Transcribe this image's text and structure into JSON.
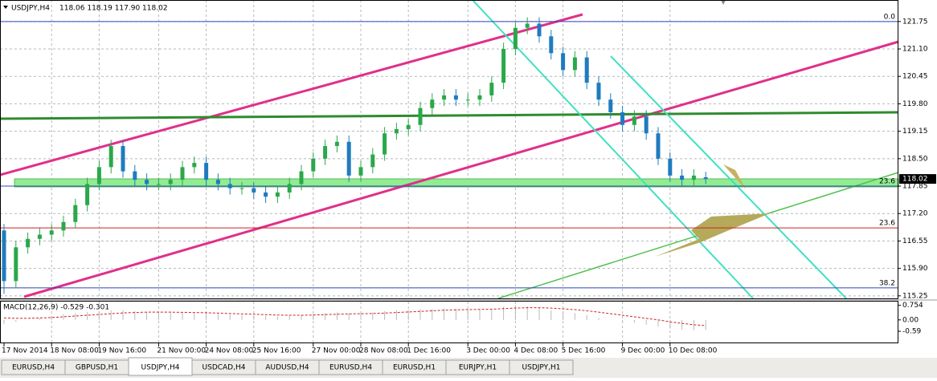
{
  "chart_data": {
    "type": "candlestick",
    "symbol": "USDJPY,H4",
    "ohlc_text": "118.06 118.19 117.90 118.02",
    "categories": [
      "17 Nov 2014",
      null,
      null,
      null,
      "18 Nov 08:00",
      null,
      null,
      null,
      "19 Nov 16:00",
      null,
      null,
      null,
      null,
      "21 Nov 00:00",
      null,
      null,
      null,
      "24 Nov 08:00",
      null,
      null,
      null,
      "25 Nov 16:00",
      null,
      null,
      null,
      null,
      "27 Nov 00:00",
      null,
      null,
      null,
      "28 Nov 08:00",
      null,
      null,
      null,
      "1 Dec 16:00",
      null,
      null,
      null,
      null,
      "3 Dec 00:00",
      null,
      null,
      null,
      "4 Dec 08:00",
      null,
      null,
      null,
      "5 Dec 16:00",
      null,
      null,
      null,
      null,
      "9 Dec 00:00",
      null,
      null,
      null,
      "10 Dec 08:00",
      null,
      null,
      null
    ],
    "open": [
      116.8,
      115.6,
      116.4,
      116.6,
      116.7,
      116.8,
      117.0,
      117.4,
      117.9,
      118.3,
      118.8,
      118.2,
      118.0,
      117.9,
      117.9,
      118.0,
      118.3,
      118.4,
      118.0,
      117.9,
      117.8,
      117.8,
      117.7,
      117.6,
      117.7,
      117.9,
      118.2,
      118.5,
      118.8,
      118.9,
      118.1,
      118.3,
      118.6,
      119.1,
      119.2,
      119.3,
      119.7,
      119.9,
      120.0,
      119.9,
      119.9,
      120.0,
      120.3,
      121.1,
      121.6,
      121.7,
      121.4,
      121.0,
      120.6,
      120.9,
      120.3,
      119.9,
      119.6,
      119.3,
      119.5,
      119.1,
      118.5,
      118.1,
      118.0,
      118.06
    ],
    "high": [
      116.95,
      116.55,
      116.75,
      116.85,
      116.95,
      117.15,
      117.55,
      118.05,
      118.45,
      118.95,
      118.95,
      118.35,
      118.15,
      118.05,
      118.15,
      118.45,
      118.55,
      118.55,
      118.15,
      118.05,
      117.95,
      117.95,
      117.85,
      117.85,
      118.05,
      118.35,
      118.65,
      118.95,
      119.05,
      119.05,
      118.45,
      118.75,
      119.25,
      119.35,
      119.45,
      119.85,
      120.05,
      120.15,
      120.15,
      120.05,
      120.15,
      120.45,
      121.25,
      121.75,
      121.85,
      121.85,
      121.55,
      121.15,
      121.05,
      121.05,
      120.45,
      120.05,
      119.75,
      119.65,
      119.65,
      119.25,
      118.65,
      118.25,
      118.25,
      118.19
    ],
    "low": [
      115.3,
      115.45,
      116.25,
      116.45,
      116.55,
      116.65,
      116.85,
      117.25,
      117.75,
      118.15,
      118.05,
      117.85,
      117.75,
      117.75,
      117.75,
      117.85,
      118.15,
      117.85,
      117.75,
      117.65,
      117.65,
      117.55,
      117.45,
      117.45,
      117.55,
      117.75,
      118.05,
      118.35,
      118.65,
      117.95,
      117.95,
      118.15,
      118.45,
      118.95,
      119.05,
      119.15,
      119.55,
      119.75,
      119.75,
      119.75,
      119.75,
      119.85,
      120.15,
      120.95,
      121.45,
      121.25,
      120.85,
      120.45,
      120.45,
      120.15,
      119.75,
      119.45,
      119.15,
      119.15,
      118.95,
      118.35,
      117.95,
      117.85,
      117.85,
      117.9
    ],
    "close": [
      115.6,
      116.4,
      116.6,
      116.7,
      116.8,
      117.0,
      117.4,
      117.9,
      118.3,
      118.8,
      118.2,
      118.0,
      117.9,
      117.9,
      118.0,
      118.3,
      118.4,
      118.0,
      117.9,
      117.8,
      117.8,
      117.7,
      117.6,
      117.7,
      117.9,
      118.2,
      118.5,
      118.8,
      118.9,
      118.1,
      118.3,
      118.6,
      119.1,
      119.2,
      119.3,
      119.7,
      119.9,
      120.0,
      119.9,
      119.9,
      120.0,
      120.3,
      121.1,
      121.6,
      121.7,
      121.4,
      121.0,
      120.6,
      120.9,
      120.3,
      119.9,
      119.6,
      119.3,
      119.5,
      119.1,
      118.5,
      118.1,
      118.0,
      118.1,
      118.02
    ],
    "bull_color": "#2aa84a",
    "bear_color": "#1f7bbf",
    "ylim": [
      115.19,
      122.26
    ],
    "yticks": [
      {
        "value": 121.75,
        "label": "121.75"
      },
      {
        "value": 121.1,
        "label": "121.10"
      },
      {
        "value": 120.45,
        "label": "120.45"
      },
      {
        "value": 119.8,
        "label": "119.80"
      },
      {
        "value": 119.15,
        "label": "119.15"
      },
      {
        "value": 118.5,
        "label": "118.50"
      },
      {
        "value": 117.85,
        "label": "117.85"
      },
      {
        "value": 117.2,
        "label": "117.20"
      },
      {
        "value": 116.55,
        "label": "116.55"
      },
      {
        "value": 115.9,
        "label": "115.90"
      },
      {
        "value": 115.25,
        "label": "115.25"
      }
    ],
    "current_price": 118.02,
    "grid": true,
    "fib_levels": [
      {
        "price": 121.75,
        "label": "0.0",
        "color": "#3344bb"
      },
      {
        "price": 117.85,
        "label": "23.6",
        "color": "#3344bb"
      },
      {
        "price": 116.86,
        "label": "23.6",
        "color": "#cc2222"
      },
      {
        "price": 115.44,
        "label": "38.2",
        "color": "#3344bb"
      }
    ],
    "macd": {
      "title": "MACD(12,26,9) -0.529 -0.301",
      "histogram": [
        -0.2,
        -0.1,
        0,
        0.1,
        0.2,
        0.3,
        0.35,
        0.4,
        0.45,
        0.5,
        0.5,
        0.45,
        0.4,
        0.4,
        0.38,
        0.38,
        0.36,
        0.33,
        0.3,
        0.28,
        0.25,
        0.22,
        0.2,
        0.18,
        0.2,
        0.25,
        0.3,
        0.35,
        0.38,
        0.35,
        0.35,
        0.38,
        0.45,
        0.5,
        0.52,
        0.55,
        0.58,
        0.6,
        0.58,
        0.56,
        0.55,
        0.58,
        0.68,
        0.75,
        0.7,
        0.62,
        0.5,
        0.4,
        0.35,
        0.25,
        0.1,
        0,
        -0.1,
        -0.15,
        -0.25,
        -0.35,
        -0.45,
        -0.5,
        -0.53,
        -0.53
      ],
      "signal": [
        0.1,
        0.08,
        0.08,
        0.1,
        0.12,
        0.16,
        0.2,
        0.24,
        0.28,
        0.32,
        0.36,
        0.38,
        0.4,
        0.4,
        0.4,
        0.39,
        0.38,
        0.37,
        0.35,
        0.33,
        0.31,
        0.29,
        0.27,
        0.25,
        0.24,
        0.24,
        0.25,
        0.27,
        0.29,
        0.31,
        0.32,
        0.33,
        0.35,
        0.38,
        0.41,
        0.44,
        0.47,
        0.5,
        0.52,
        0.53,
        0.54,
        0.55,
        0.58,
        0.61,
        0.63,
        0.63,
        0.61,
        0.57,
        0.53,
        0.47,
        0.4,
        0.32,
        0.24,
        0.16,
        0.08,
        0,
        -0.1,
        -0.18,
        -0.25,
        -0.3
      ],
      "ylim": [
        -1.21,
        0.945
      ],
      "yticks": [
        0.754,
        {
          "value": 0,
          "label": "0.00"
        },
        -0.59
      ],
      "signal_color": "#cc2222",
      "histogram_color": "#b8b8b8"
    }
  },
  "tabs": [
    "EURUSD,H4",
    "GBPUSD,H1",
    "USDJPY,H4",
    "USDCAD,H4",
    "AUDUSD,H4",
    "EURUSD,H4",
    "EURUSD,H1",
    "EURJPY,H1",
    "USDJPY,H1"
  ],
  "active_tab": 2
}
